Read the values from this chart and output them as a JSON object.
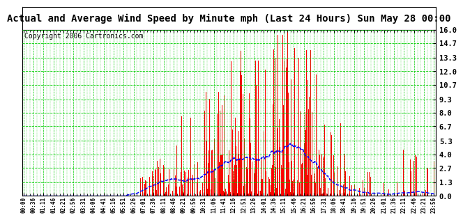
{
  "title": "Actual and Average Wind Speed by Minute mph (Last 24 Hours) Sun May 28 00:00",
  "copyright": "Copyright 2006 Cartronics.com",
  "yticks": [
    0.0,
    1.3,
    2.7,
    4.0,
    5.3,
    6.7,
    8.0,
    9.3,
    10.7,
    12.0,
    13.3,
    14.7,
    16.0
  ],
  "ylim": [
    0.0,
    16.0
  ],
  "xtick_labels": [
    "00:00",
    "00:36",
    "01:11",
    "01:46",
    "02:21",
    "02:56",
    "03:31",
    "04:06",
    "04:41",
    "05:16",
    "05:51",
    "06:26",
    "07:01",
    "07:36",
    "08:11",
    "08:46",
    "09:21",
    "09:56",
    "10:31",
    "11:06",
    "11:41",
    "12:16",
    "12:51",
    "13:26",
    "14:01",
    "14:36",
    "15:11",
    "15:46",
    "16:21",
    "16:56",
    "17:31",
    "18:06",
    "18:41",
    "19:16",
    "19:51",
    "20:26",
    "21:01",
    "21:36",
    "22:11",
    "22:46",
    "23:21",
    "23:56"
  ],
  "bg_color": "#ffffff",
  "bar_color": "#ff0000",
  "avg_line_color": "#0000ff",
  "grid_color": "#00cc00",
  "title_fontsize": 10,
  "copyright_fontsize": 7,
  "n_minutes": 1440
}
